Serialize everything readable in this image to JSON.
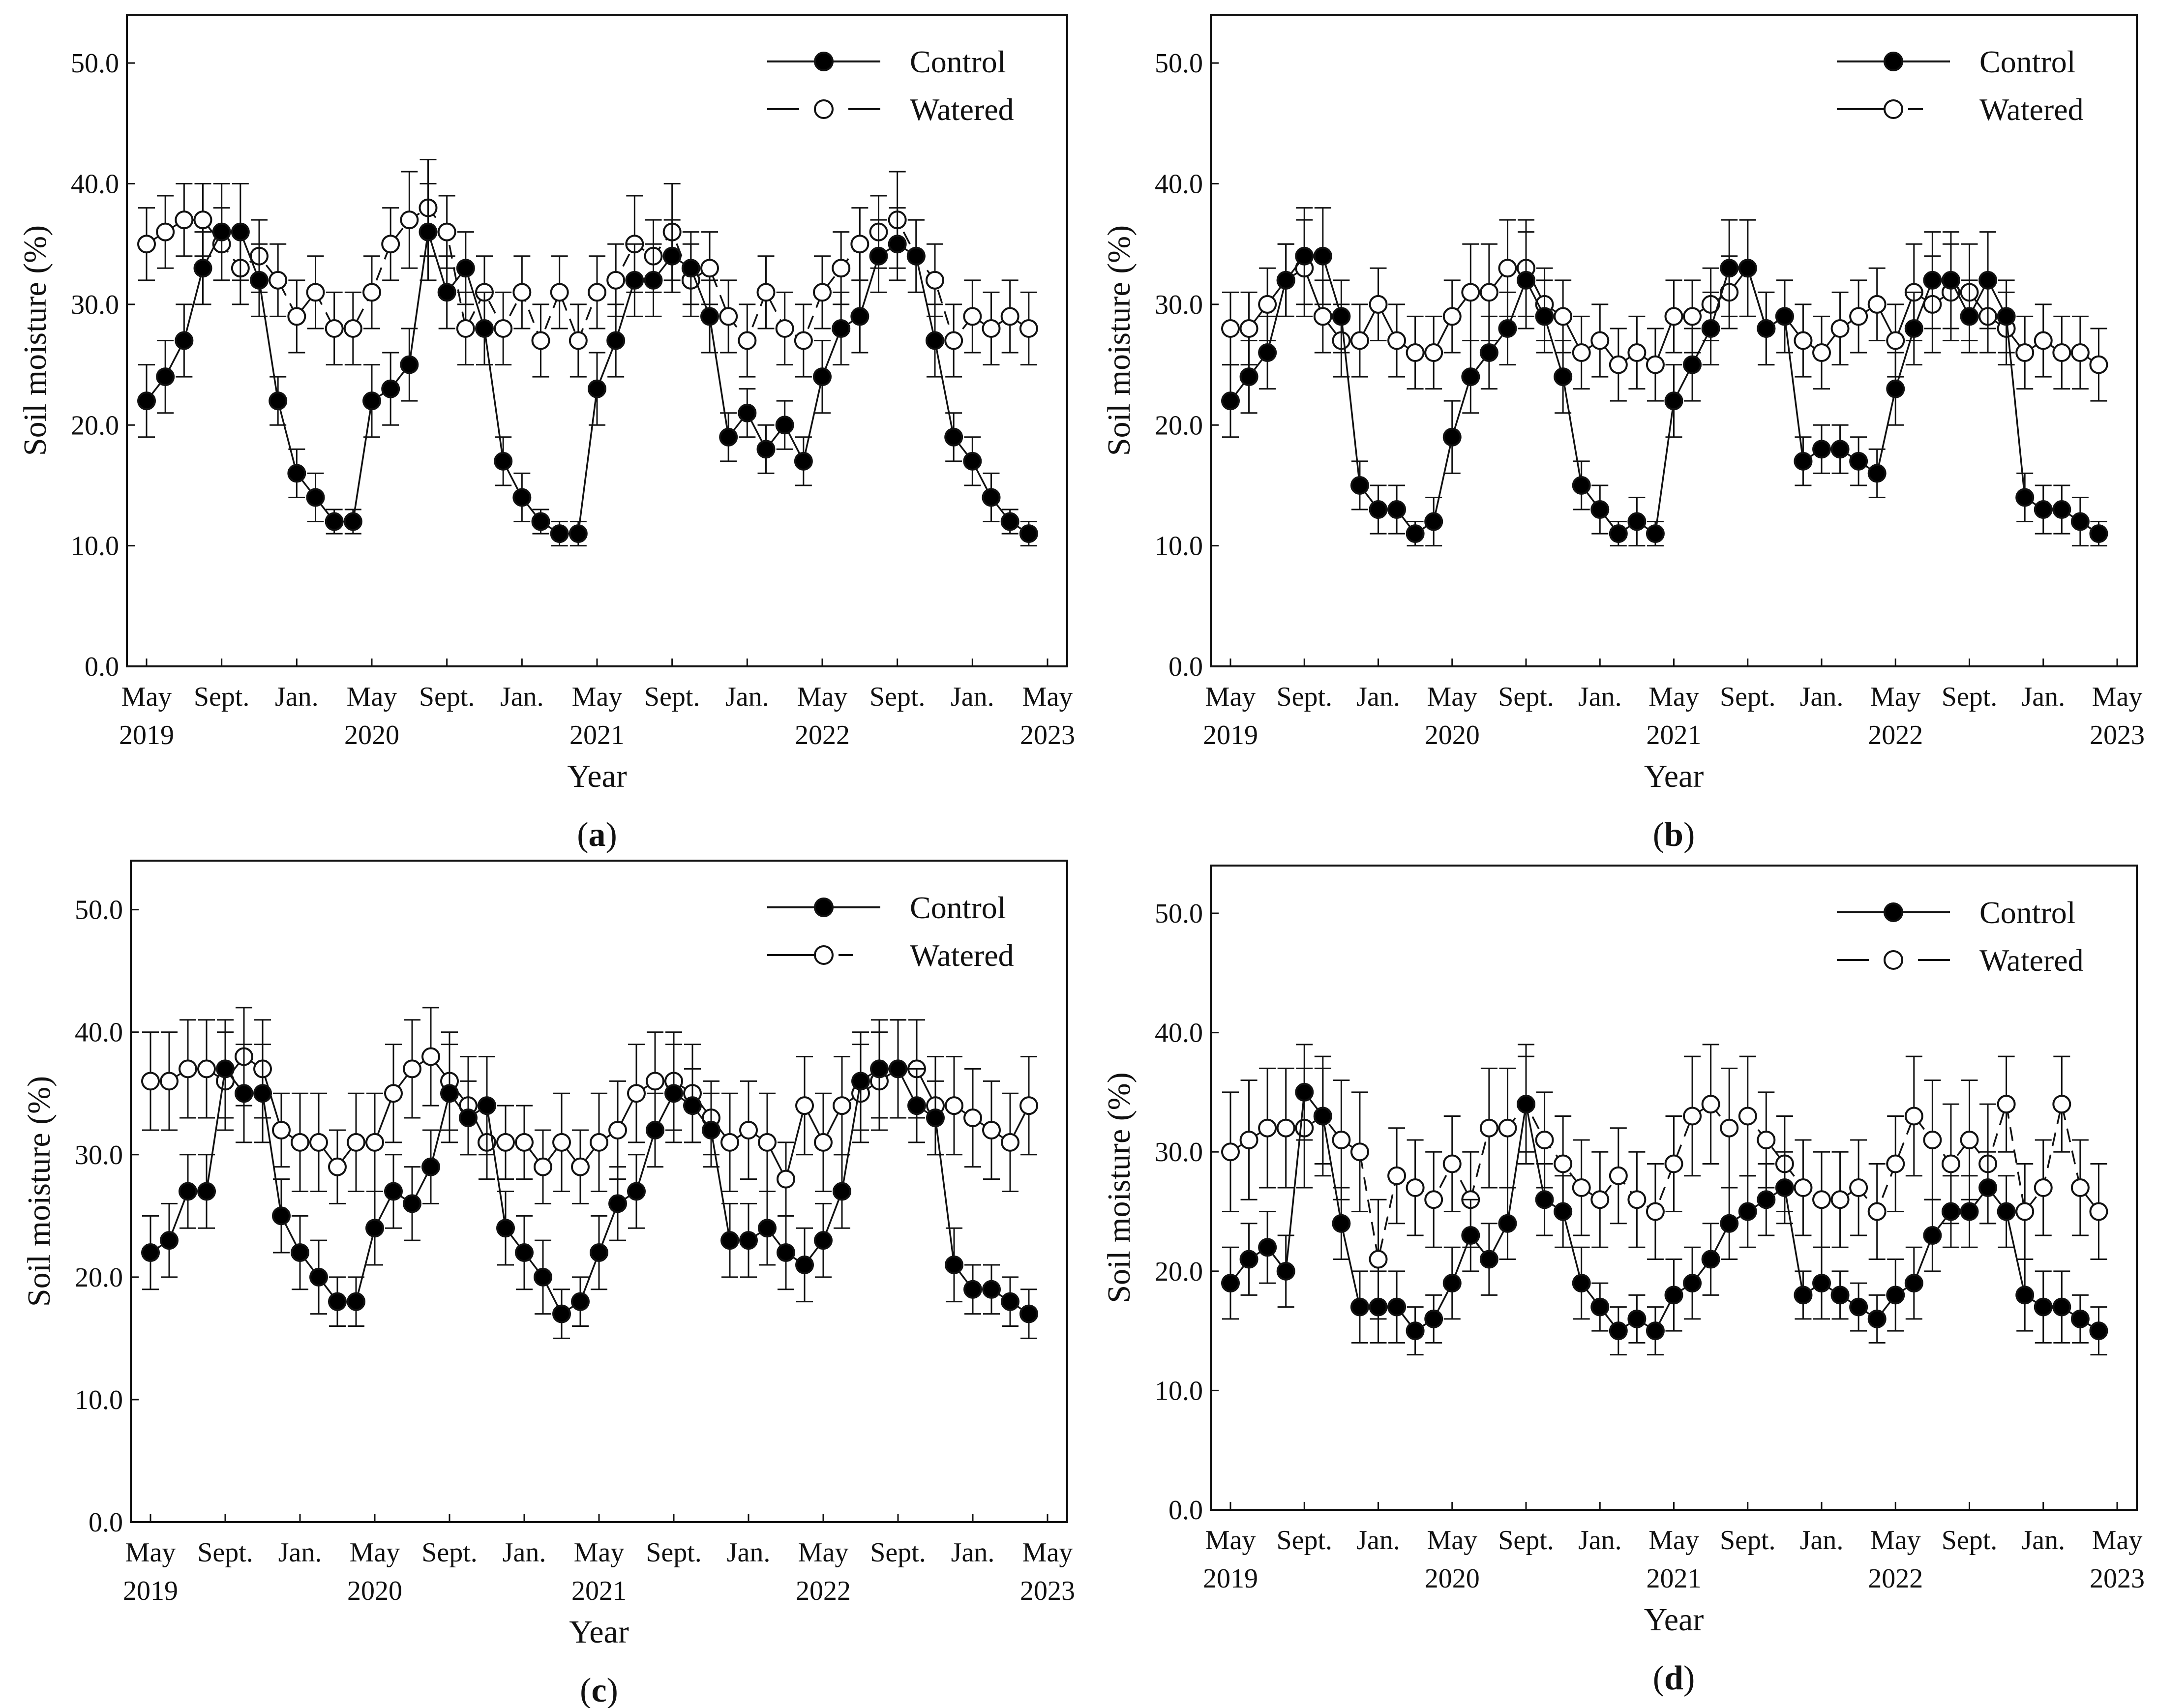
{
  "figure": {
    "x_tick_labels": [
      {
        "line1": "May",
        "line2": "2019"
      },
      {
        "line1": "Sept.",
        "line2": ""
      },
      {
        "line1": "Jan.",
        "line2": ""
      },
      {
        "line1": "May",
        "line2": "2020"
      },
      {
        "line1": "Sept.",
        "line2": ""
      },
      {
        "line1": "Jan.",
        "line2": ""
      },
      {
        "line1": "May",
        "line2": "2021"
      },
      {
        "line1": "Sept.",
        "line2": ""
      },
      {
        "line1": "Jan.",
        "line2": ""
      },
      {
        "line1": "May",
        "line2": "2022"
      },
      {
        "line1": "Sept.",
        "line2": ""
      },
      {
        "line1": "Jan.",
        "line2": ""
      },
      {
        "line1": "May",
        "line2": "2023"
      }
    ],
    "y_tick_labels": [
      "0.0",
      "10.0",
      "20.0",
      "30.0",
      "40.0",
      "50.0"
    ],
    "legend": {
      "control": "Control",
      "watered": "Watered"
    },
    "panel_labels": [
      "a",
      "b",
      "c",
      "d"
    ],
    "colors": {
      "line": "#111111",
      "control_marker": "#000000",
      "watered_marker": "#ffffff"
    }
  },
  "chart_data": [
    {
      "type": "line",
      "panel": "a",
      "xlabel": "Year",
      "ylabel": "Soil moisture (%)",
      "ylim": [
        0,
        54
      ],
      "x": [
        "2019-05",
        "2019-06",
        "2019-07",
        "2019-08",
        "2019-09",
        "2019-10",
        "2019-11",
        "2019-12",
        "2020-01",
        "2020-02",
        "2020-03",
        "2020-04",
        "2020-05",
        "2020-06",
        "2020-07",
        "2020-08",
        "2020-09",
        "2020-10",
        "2020-11",
        "2020-12",
        "2021-01",
        "2021-02",
        "2021-03",
        "2021-04",
        "2021-05",
        "2021-06",
        "2021-07",
        "2021-08",
        "2021-09",
        "2021-10",
        "2021-11",
        "2021-12",
        "2022-01",
        "2022-02",
        "2022-03",
        "2022-04",
        "2022-05",
        "2022-06",
        "2022-07",
        "2022-08",
        "2022-09",
        "2022-10",
        "2022-11",
        "2022-12",
        "2023-01",
        "2023-02",
        "2023-03",
        "2023-04",
        "2023-05"
      ],
      "series": [
        {
          "name": "Control",
          "marker": "filled",
          "line": "solid",
          "values": [
            22,
            24,
            27,
            33,
            36,
            36,
            32,
            22,
            16,
            14,
            12,
            12,
            22,
            23,
            25,
            36,
            31,
            33,
            28,
            17,
            14,
            12,
            11,
            11,
            23,
            27,
            32,
            32,
            34,
            33,
            29,
            19,
            21,
            18,
            20,
            17,
            24,
            28,
            29,
            34,
            35,
            34,
            27,
            19,
            17,
            14,
            12,
            11,
            null
          ],
          "error": [
            3,
            3,
            3,
            3,
            4,
            4,
            3,
            2,
            2,
            2,
            1,
            1,
            3,
            3,
            3,
            4,
            3,
            3,
            3,
            2,
            2,
            1,
            1,
            1,
            3,
            3,
            3,
            3,
            3,
            3,
            3,
            2,
            2,
            2,
            2,
            2,
            3,
            3,
            3,
            3,
            3,
            3,
            3,
            2,
            2,
            2,
            1,
            1,
            null
          ]
        },
        {
          "name": "Watered",
          "marker": "open",
          "line": "dashed",
          "values": [
            35,
            36,
            37,
            37,
            35,
            33,
            34,
            32,
            29,
            31,
            28,
            28,
            31,
            35,
            37,
            38,
            36,
            28,
            31,
            28,
            31,
            27,
            31,
            27,
            31,
            32,
            35,
            34,
            36,
            32,
            33,
            29,
            27,
            31,
            28,
            27,
            31,
            33,
            35,
            36,
            37,
            34,
            32,
            27,
            29,
            28,
            29,
            28,
            null
          ],
          "error": [
            3,
            3,
            3,
            3,
            3,
            3,
            3,
            3,
            3,
            3,
            3,
            3,
            3,
            3,
            4,
            4,
            3,
            3,
            3,
            3,
            3,
            3,
            3,
            3,
            3,
            3,
            4,
            3,
            4,
            3,
            3,
            3,
            3,
            3,
            3,
            3,
            3,
            3,
            3,
            3,
            4,
            3,
            3,
            3,
            3,
            3,
            3,
            3,
            null
          ]
        }
      ]
    },
    {
      "type": "line",
      "panel": "b",
      "xlabel": "Year",
      "ylabel": "Soil moisture (%)",
      "ylim": [
        0,
        54
      ],
      "x": [
        "2019-05",
        "2019-06",
        "2019-07",
        "2019-08",
        "2019-09",
        "2019-10",
        "2019-11",
        "2019-12",
        "2020-01",
        "2020-02",
        "2020-03",
        "2020-04",
        "2020-05",
        "2020-06",
        "2020-07",
        "2020-08",
        "2020-09",
        "2020-10",
        "2020-11",
        "2020-12",
        "2021-01",
        "2021-02",
        "2021-03",
        "2021-04",
        "2021-05",
        "2021-06",
        "2021-07",
        "2021-08",
        "2021-09",
        "2021-10",
        "2021-11",
        "2021-12",
        "2022-01",
        "2022-02",
        "2022-03",
        "2022-04",
        "2022-05",
        "2022-06",
        "2022-07",
        "2022-08",
        "2022-09",
        "2022-10",
        "2022-11",
        "2022-12",
        "2023-01",
        "2023-02",
        "2023-03",
        "2023-04",
        "2023-05"
      ],
      "series": [
        {
          "name": "Control",
          "marker": "filled",
          "line": "solid",
          "values": [
            22,
            24,
            26,
            32,
            34,
            34,
            29,
            15,
            13,
            13,
            11,
            12,
            19,
            24,
            26,
            28,
            32,
            29,
            24,
            15,
            13,
            11,
            12,
            11,
            22,
            25,
            28,
            33,
            33,
            28,
            29,
            17,
            18,
            18,
            17,
            16,
            23,
            28,
            32,
            32,
            29,
            32,
            29,
            14,
            13,
            13,
            12,
            11,
            null
          ],
          "error": [
            3,
            3,
            3,
            3,
            4,
            4,
            3,
            2,
            2,
            2,
            1,
            2,
            3,
            3,
            3,
            3,
            4,
            3,
            3,
            2,
            2,
            1,
            2,
            1,
            3,
            3,
            3,
            4,
            4,
            3,
            3,
            2,
            2,
            2,
            2,
            2,
            3,
            3,
            4,
            4,
            3,
            4,
            3,
            2,
            2,
            2,
            2,
            1,
            null
          ]
        },
        {
          "name": "Watered",
          "marker": "open",
          "line": "dashed",
          "values": [
            28,
            28,
            30,
            32,
            33,
            29,
            27,
            27,
            30,
            27,
            26,
            26,
            29,
            31,
            31,
            33,
            33,
            30,
            29,
            26,
            27,
            25,
            26,
            25,
            29,
            29,
            30,
            31,
            33,
            28,
            29,
            27,
            26,
            28,
            29,
            30,
            27,
            31,
            30,
            31,
            31,
            29,
            28,
            26,
            27,
            26,
            26,
            25,
            null
          ],
          "error": [
            3,
            3,
            3,
            3,
            4,
            3,
            3,
            3,
            3,
            3,
            3,
            3,
            3,
            4,
            4,
            4,
            4,
            3,
            3,
            3,
            3,
            3,
            3,
            3,
            3,
            3,
            3,
            3,
            4,
            3,
            3,
            3,
            3,
            3,
            3,
            3,
            3,
            4,
            4,
            4,
            4,
            3,
            3,
            3,
            3,
            3,
            3,
            3,
            null
          ]
        }
      ]
    },
    {
      "type": "line",
      "panel": "c",
      "xlabel": "Year",
      "ylabel": "Soil moisture (%)",
      "ylim": [
        0,
        54
      ],
      "x": [
        "2019-05",
        "2019-06",
        "2019-07",
        "2019-08",
        "2019-09",
        "2019-10",
        "2019-11",
        "2019-12",
        "2020-01",
        "2020-02",
        "2020-03",
        "2020-04",
        "2020-05",
        "2020-06",
        "2020-07",
        "2020-08",
        "2020-09",
        "2020-10",
        "2020-11",
        "2020-12",
        "2021-01",
        "2021-02",
        "2021-03",
        "2021-04",
        "2021-05",
        "2021-06",
        "2021-07",
        "2021-08",
        "2021-09",
        "2021-10",
        "2021-11",
        "2021-12",
        "2022-01",
        "2022-02",
        "2022-03",
        "2022-04",
        "2022-05",
        "2022-06",
        "2022-07",
        "2022-08",
        "2022-09",
        "2022-10",
        "2022-11",
        "2022-12",
        "2023-01",
        "2023-02",
        "2023-03",
        "2023-04",
        "2023-05"
      ],
      "series": [
        {
          "name": "Control",
          "marker": "filled",
          "line": "solid",
          "values": [
            22,
            23,
            27,
            27,
            37,
            35,
            35,
            25,
            22,
            20,
            18,
            18,
            24,
            27,
            26,
            29,
            35,
            33,
            34,
            24,
            22,
            20,
            17,
            18,
            22,
            26,
            27,
            32,
            35,
            34,
            32,
            23,
            23,
            24,
            22,
            21,
            23,
            27,
            36,
            37,
            37,
            34,
            33,
            21,
            19,
            19,
            18,
            17,
            null
          ],
          "error": [
            3,
            3,
            3,
            3,
            4,
            4,
            4,
            3,
            3,
            3,
            2,
            2,
            3,
            3,
            3,
            3,
            4,
            3,
            4,
            3,
            3,
            3,
            2,
            2,
            3,
            3,
            3,
            3,
            4,
            3,
            3,
            3,
            3,
            3,
            3,
            3,
            3,
            3,
            4,
            4,
            4,
            3,
            3,
            3,
            2,
            2,
            2,
            2,
            null
          ]
        },
        {
          "name": "Watered",
          "marker": "open",
          "line": "dashed",
          "values": [
            36,
            36,
            37,
            37,
            36,
            38,
            37,
            32,
            31,
            31,
            29,
            31,
            31,
            35,
            37,
            38,
            36,
            34,
            31,
            31,
            31,
            29,
            31,
            29,
            31,
            32,
            35,
            36,
            36,
            35,
            33,
            31,
            32,
            31,
            28,
            34,
            31,
            34,
            35,
            36,
            37,
            37,
            34,
            34,
            33,
            32,
            31,
            34,
            null
          ],
          "error": [
            4,
            4,
            4,
            4,
            4,
            4,
            4,
            3,
            4,
            4,
            3,
            4,
            4,
            4,
            4,
            4,
            4,
            4,
            3,
            3,
            3,
            3,
            4,
            3,
            4,
            4,
            4,
            4,
            4,
            4,
            3,
            4,
            4,
            4,
            3,
            4,
            4,
            4,
            4,
            4,
            4,
            4,
            4,
            4,
            4,
            4,
            4,
            4,
            null
          ]
        }
      ]
    },
    {
      "type": "line",
      "panel": "d",
      "xlabel": "Year",
      "ylabel": "Soil moisture (%)",
      "ylim": [
        0,
        54
      ],
      "x": [
        "2019-05",
        "2019-06",
        "2019-07",
        "2019-08",
        "2019-09",
        "2019-10",
        "2019-11",
        "2019-12",
        "2020-01",
        "2020-02",
        "2020-03",
        "2020-04",
        "2020-05",
        "2020-06",
        "2020-07",
        "2020-08",
        "2020-09",
        "2020-10",
        "2020-11",
        "2020-12",
        "2021-01",
        "2021-02",
        "2021-03",
        "2021-04",
        "2021-05",
        "2021-06",
        "2021-07",
        "2021-08",
        "2021-09",
        "2021-10",
        "2021-11",
        "2021-12",
        "2022-01",
        "2022-02",
        "2022-03",
        "2022-04",
        "2022-05",
        "2022-06",
        "2022-07",
        "2022-08",
        "2022-09",
        "2022-10",
        "2022-11",
        "2022-12",
        "2023-01",
        "2023-02",
        "2023-03",
        "2023-04",
        "2023-05"
      ],
      "series": [
        {
          "name": "Control",
          "marker": "filled",
          "line": "solid",
          "values": [
            19,
            21,
            22,
            20,
            35,
            33,
            24,
            17,
            17,
            17,
            15,
            16,
            19,
            23,
            21,
            24,
            34,
            26,
            25,
            19,
            17,
            15,
            16,
            15,
            18,
            19,
            21,
            24,
            25,
            26,
            27,
            18,
            19,
            18,
            17,
            16,
            18,
            19,
            23,
            25,
            25,
            27,
            25,
            18,
            17,
            17,
            16,
            15,
            null
          ],
          "error": [
            3,
            3,
            3,
            3,
            4,
            4,
            3,
            3,
            3,
            3,
            2,
            2,
            3,
            3,
            3,
            3,
            4,
            3,
            3,
            3,
            2,
            2,
            2,
            2,
            3,
            3,
            3,
            3,
            3,
            3,
            3,
            2,
            3,
            2,
            2,
            2,
            3,
            3,
            3,
            3,
            3,
            3,
            3,
            3,
            3,
            3,
            2,
            2,
            null
          ]
        },
        {
          "name": "Watered",
          "marker": "open",
          "line": "dashed",
          "values": [
            30,
            31,
            32,
            32,
            32,
            33,
            31,
            30,
            21,
            28,
            27,
            26,
            29,
            26,
            32,
            32,
            34,
            31,
            29,
            27,
            26,
            28,
            26,
            25,
            29,
            33,
            34,
            32,
            33,
            31,
            29,
            27,
            26,
            26,
            27,
            25,
            29,
            33,
            31,
            29,
            31,
            29,
            34,
            25,
            27,
            34,
            27,
            25,
            null
          ],
          "error": [
            5,
            5,
            5,
            5,
            5,
            5,
            5,
            5,
            5,
            4,
            4,
            4,
            4,
            4,
            5,
            5,
            5,
            4,
            4,
            4,
            4,
            4,
            4,
            4,
            4,
            5,
            5,
            5,
            5,
            4,
            4,
            4,
            4,
            4,
            4,
            4,
            4,
            5,
            5,
            5,
            5,
            5,
            4,
            4,
            4,
            4,
            4,
            4,
            null
          ]
        }
      ]
    }
  ]
}
